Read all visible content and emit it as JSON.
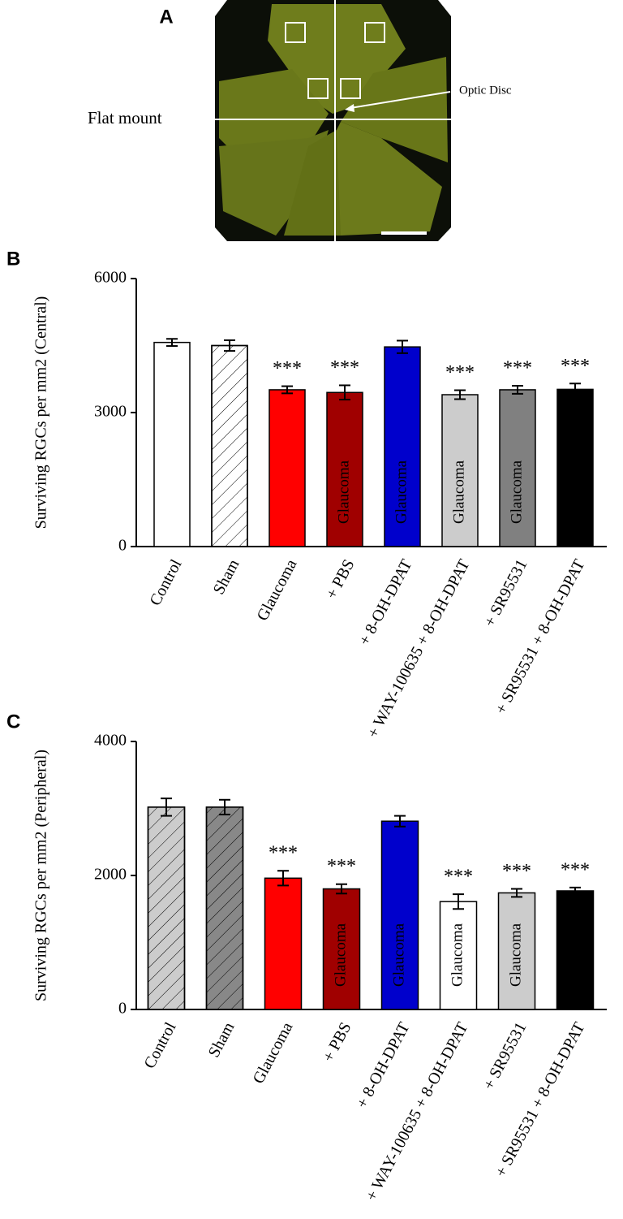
{
  "panel_a": {
    "label": "A",
    "caption": "Flat mount",
    "arrow_label": "Optic Disc"
  },
  "chart_data": [
    {
      "type": "bar",
      "panel": "B",
      "ylabel": "Surviving RGCs per mm2 (Central)",
      "categories": [
        "Control",
        "Sham",
        "Glaucoma",
        "+ PBS",
        "+ 8-OH-DPAT",
        "+ WAY-100635 + 8-OH-DPAT",
        "+ SR95531",
        "+ SR95531 + 8-OH-DPAT"
      ],
      "values": [
        4570,
        4500,
        3510,
        3450,
        4470,
        3400,
        3510,
        3520
      ],
      "errors": [
        80,
        120,
        80,
        160,
        140,
        100,
        90,
        130
      ],
      "colors": [
        "#ffffff",
        "#ffffff",
        "#ff0000",
        "#a00000",
        "#0000cc",
        "#cccccc",
        "#808080",
        "#000000"
      ],
      "hatched": [
        false,
        true,
        false,
        false,
        false,
        false,
        false,
        false
      ],
      "bar_labels": [
        null,
        null,
        null,
        "Glaucoma",
        "Glaucoma",
        "Glaucoma",
        "Glaucoma",
        "Glaucoma"
      ],
      "annotations": [
        null,
        null,
        "***",
        "***",
        null,
        "***",
        "***",
        "***"
      ],
      "ylim": [
        0,
        6000
      ],
      "yticks": [
        0,
        3000,
        6000
      ]
    },
    {
      "type": "bar",
      "panel": "C",
      "ylabel": "Surviving RGCs per mm2 (Peripheral)",
      "categories": [
        "Control",
        "Sham",
        "Glaucoma",
        "+ PBS",
        "+ 8-OH-DPAT",
        "+ WAY-100635 + 8-OH-DPAT",
        "+ SR95531",
        "+ SR95531 + 8-OH-DPAT"
      ],
      "values": [
        3020,
        3020,
        1960,
        1800,
        2810,
        1610,
        1740,
        1770
      ],
      "errors": [
        130,
        110,
        110,
        70,
        80,
        110,
        60,
        50
      ],
      "colors": [
        "#cccccc",
        "#888888",
        "#ff0000",
        "#a00000",
        "#0000cc",
        "#ffffff",
        "#cccccc",
        "#000000"
      ],
      "hatched": [
        true,
        true,
        false,
        false,
        false,
        false,
        false,
        false
      ],
      "bar_labels": [
        null,
        null,
        null,
        "Glaucoma",
        "Glaucoma",
        "Glaucoma",
        "Glaucoma",
        "Glaucoma"
      ],
      "annotations": [
        null,
        null,
        "***",
        "***",
        null,
        "***",
        "***",
        "***"
      ],
      "ylim": [
        0,
        4000
      ],
      "yticks": [
        0,
        2000,
        4000
      ]
    }
  ]
}
